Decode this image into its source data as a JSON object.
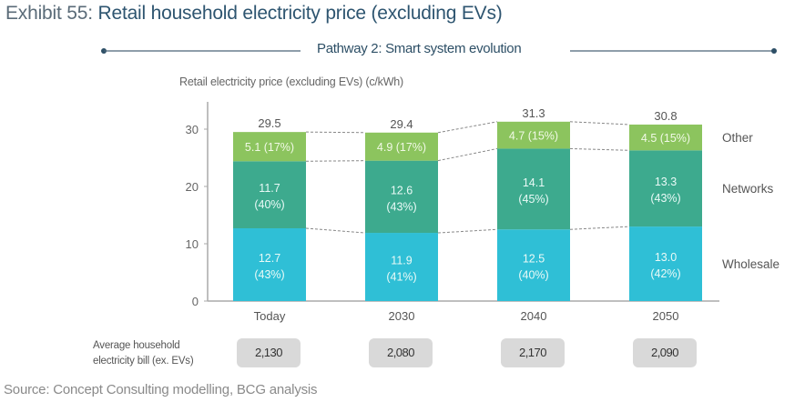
{
  "exhibit": {
    "prefix": "Exhibit 55: ",
    "title": "Retail household electricity price (excluding EVs)"
  },
  "pathway_label": "Pathway 2: Smart system evolution",
  "colors": {
    "wholesale": "#2fbfd6",
    "networks": "#3daa8e",
    "other": "#8cc45e"
  },
  "chart_data": {
    "type": "bar",
    "stacked": true,
    "title": "Retail household electricity price (excluding EVs)",
    "subtitle": "Pathway 2: Smart system evolution",
    "ylabel": "Retail electricity price (excluding EVs) (c/kWh)",
    "xlabel": "",
    "ylim": [
      0,
      35
    ],
    "yticks": [
      0,
      10,
      20,
      30
    ],
    "grid": false,
    "legend": "right",
    "categories": [
      "Today",
      "2030",
      "2040",
      "2050"
    ],
    "series": [
      {
        "name": "Wholesale",
        "values": [
          12.7,
          11.9,
          12.5,
          13.0
        ],
        "labels": [
          "12.7",
          "11.9",
          "12.5",
          "13.0"
        ],
        "shares": [
          "(43%)",
          "(41%)",
          "(40%)",
          "(42%)"
        ]
      },
      {
        "name": "Networks",
        "values": [
          11.7,
          12.6,
          14.1,
          13.3
        ],
        "labels": [
          "11.7",
          "12.6",
          "14.1",
          "13.3"
        ],
        "shares": [
          "(40%)",
          "(43%)",
          "(45%)",
          "(43%)"
        ]
      },
      {
        "name": "Other",
        "values": [
          5.1,
          4.9,
          4.7,
          4.5
        ],
        "labels": [
          "5.1 (17%)",
          "4.9 (17%)",
          "4.7 (15%)",
          "4.5 (15%)"
        ]
      }
    ],
    "totals": [
      "29.5",
      "29.4",
      "31.3",
      "30.8"
    ],
    "total_values": [
      29.5,
      29.4,
      31.3,
      30.8
    ]
  },
  "bill": {
    "label_line1": "Average household",
    "label_line2": "electricity bill (ex. EVs)",
    "values": [
      "2,130",
      "2,080",
      "2,170",
      "2,090"
    ]
  },
  "source": "Source: Concept Consulting modelling, BCG analysis"
}
